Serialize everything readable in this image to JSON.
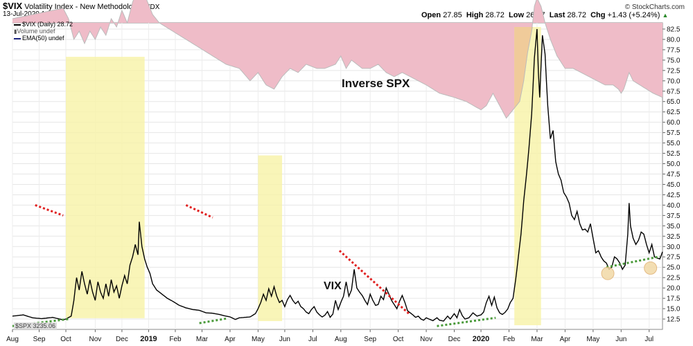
{
  "header": {
    "symbol": "$VIX",
    "name": "Volatility Index - New Methodology",
    "exchange": "INDX",
    "timestamp": "13-Jul-2020 1:37pm",
    "open_label": "Open",
    "open": "27.85",
    "high_label": "High",
    "high": "28.72",
    "low_label": "Low",
    "low": "26.87",
    "last_label": "Last",
    "last": "28.72",
    "chg_label": "Chg",
    "chg": "+1.43 (+5.24%)",
    "up_arrow": "▲",
    "brand": "© StockCharts.com"
  },
  "legend": {
    "vix": "$VIX (Daily) 28.72",
    "volume": "Volume undef",
    "ema": "EMA(50) undef",
    "spx": "$SPX 3235.06"
  },
  "annotations": {
    "inverse_spx": "Inverse SPX",
    "vix": "VIX"
  },
  "colors": {
    "inverse_fill": "#efbcc8",
    "highlight_yellow": "#f7f3a6",
    "highlight_orange": "#efc596",
    "vix_line": "#000000",
    "red_dots": "#e02020",
    "green_dots": "#4a9a3a",
    "circle_fill": "#f1d9a6"
  },
  "chart_data": {
    "type": "line",
    "title": "$VIX Volatility Index - New Methodology",
    "ylim": [
      10,
      84
    ],
    "y_ticks": [
      "12.5",
      "15.0",
      "17.5",
      "20.0",
      "22.5",
      "25.0",
      "27.5",
      "30.0",
      "32.5",
      "35.0",
      "37.5",
      "40.0",
      "42.5",
      "45.0",
      "47.5",
      "50.0",
      "52.5",
      "55.0",
      "57.5",
      "60.0",
      "62.5",
      "65.0",
      "67.5",
      "70.0",
      "72.5",
      "75.0",
      "77.5",
      "80.0",
      "82.5"
    ],
    "x_labels": [
      "Aug",
      "Sep",
      "Oct",
      "Nov",
      "Dec",
      "2019",
      "Feb",
      "Mar",
      "Apr",
      "May",
      "Jun",
      "Jul",
      "Aug",
      "Sep",
      "Oct",
      "Nov",
      "Dec",
      "2020",
      "Feb",
      "Mar",
      "Apr",
      "May",
      "Jun",
      "Jul"
    ],
    "x_label_index": [
      0,
      20,
      40,
      62,
      82,
      102,
      122,
      142,
      163,
      184,
      204,
      225,
      246,
      268,
      289,
      310,
      331,
      351,
      372,
      393,
      414,
      435,
      456,
      477
    ],
    "n_points": 488,
    "series": [
      {
        "name": "$VIX (Daily)",
        "anchors": [
          [
            0,
            13.2
          ],
          [
            8,
            13.5
          ],
          [
            15,
            12.8
          ],
          [
            22,
            12.6
          ],
          [
            30,
            12.9
          ],
          [
            38,
            12.3
          ],
          [
            40,
            12.5
          ],
          [
            44,
            13.2
          ],
          [
            46,
            17.0
          ],
          [
            48,
            22.5
          ],
          [
            50,
            19.5
          ],
          [
            52,
            24.0
          ],
          [
            54,
            21.0
          ],
          [
            56,
            18.5
          ],
          [
            58,
            22.0
          ],
          [
            60,
            19.0
          ],
          [
            62,
            17.0
          ],
          [
            64,
            21.5
          ],
          [
            66,
            19.0
          ],
          [
            68,
            17.5
          ],
          [
            70,
            21.0
          ],
          [
            72,
            18.0
          ],
          [
            74,
            22.0
          ],
          [
            76,
            19.0
          ],
          [
            78,
            20.5
          ],
          [
            80,
            17.5
          ],
          [
            82,
            20.5
          ],
          [
            84,
            23.0
          ],
          [
            86,
            21.0
          ],
          [
            88,
            25.5
          ],
          [
            90,
            27.5
          ],
          [
            92,
            30.5
          ],
          [
            94,
            28.0
          ],
          [
            95,
            36.0
          ],
          [
            97,
            30.0
          ],
          [
            99,
            27.0
          ],
          [
            101,
            25.0
          ],
          [
            103,
            23.5
          ],
          [
            105,
            21.0
          ],
          [
            108,
            19.5
          ],
          [
            112,
            18.5
          ],
          [
            116,
            17.5
          ],
          [
            120,
            16.8
          ],
          [
            125,
            15.8
          ],
          [
            130,
            15.2
          ],
          [
            135,
            14.8
          ],
          [
            140,
            14.6
          ],
          [
            145,
            14.0
          ],
          [
            150,
            13.9
          ],
          [
            155,
            13.6
          ],
          [
            160,
            13.2
          ],
          [
            163,
            13.0
          ],
          [
            167,
            12.4
          ],
          [
            170,
            12.8
          ],
          [
            174,
            12.9
          ],
          [
            178,
            13.0
          ],
          [
            182,
            13.8
          ],
          [
            184,
            15.0
          ],
          [
            186,
            16.5
          ],
          [
            188,
            18.5
          ],
          [
            190,
            17.0
          ],
          [
            192,
            19.8
          ],
          [
            194,
            18.0
          ],
          [
            196,
            20.3
          ],
          [
            198,
            18.0
          ],
          [
            200,
            16.5
          ],
          [
            202,
            17.0
          ],
          [
            204,
            15.5
          ],
          [
            206,
            17.2
          ],
          [
            208,
            18.2
          ],
          [
            210,
            17.0
          ],
          [
            212,
            16.2
          ],
          [
            214,
            16.8
          ],
          [
            216,
            15.5
          ],
          [
            218,
            15.0
          ],
          [
            220,
            14.2
          ],
          [
            222,
            13.8
          ],
          [
            224,
            14.8
          ],
          [
            226,
            15.5
          ],
          [
            228,
            14.2
          ],
          [
            230,
            13.5
          ],
          [
            232,
            13.0
          ],
          [
            234,
            13.4
          ],
          [
            236,
            14.3
          ],
          [
            238,
            12.9
          ],
          [
            240,
            13.7
          ],
          [
            242,
            17.0
          ],
          [
            244,
            14.8
          ],
          [
            246,
            16.5
          ],
          [
            248,
            18.0
          ],
          [
            250,
            21.5
          ],
          [
            252,
            18.0
          ],
          [
            254,
            19.5
          ],
          [
            256,
            24.5
          ],
          [
            258,
            20.0
          ],
          [
            260,
            19.0
          ],
          [
            262,
            18.2
          ],
          [
            264,
            17.0
          ],
          [
            266,
            16.0
          ],
          [
            268,
            18.5
          ],
          [
            270,
            17.0
          ],
          [
            272,
            15.8
          ],
          [
            274,
            16.0
          ],
          [
            276,
            18.0
          ],
          [
            278,
            17.2
          ],
          [
            280,
            20.0
          ],
          [
            282,
            18.5
          ],
          [
            284,
            17.0
          ],
          [
            286,
            16.0
          ],
          [
            288,
            15.0
          ],
          [
            290,
            16.8
          ],
          [
            292,
            18.2
          ],
          [
            294,
            16.5
          ],
          [
            296,
            14.5
          ],
          [
            298,
            14.0
          ],
          [
            300,
            13.5
          ],
          [
            302,
            12.9
          ],
          [
            304,
            13.2
          ],
          [
            306,
            12.5
          ],
          [
            308,
            12.2
          ],
          [
            310,
            12.8
          ],
          [
            312,
            12.5
          ],
          [
            315,
            12.1
          ],
          [
            318,
            12.8
          ],
          [
            320,
            12.2
          ],
          [
            323,
            12.0
          ],
          [
            326,
            13.2
          ],
          [
            328,
            12.5
          ],
          [
            331,
            13.8
          ],
          [
            333,
            12.8
          ],
          [
            335,
            14.8
          ],
          [
            337,
            13.3
          ],
          [
            339,
            12.5
          ],
          [
            342,
            12.8
          ],
          [
            345,
            14.0
          ],
          [
            348,
            13.2
          ],
          [
            351,
            13.5
          ],
          [
            353,
            14.2
          ],
          [
            355,
            16.5
          ],
          [
            357,
            18.0
          ],
          [
            359,
            15.8
          ],
          [
            361,
            17.8
          ],
          [
            363,
            15.2
          ],
          [
            365,
            14.0
          ],
          [
            367,
            13.6
          ],
          [
            369,
            14.1
          ],
          [
            371,
            14.9
          ],
          [
            373,
            16.5
          ],
          [
            375,
            17.5
          ],
          [
            377,
            22.0
          ],
          [
            379,
            27.5
          ],
          [
            381,
            33.0
          ],
          [
            383,
            41.0
          ],
          [
            385,
            47.0
          ],
          [
            387,
            54.0
          ],
          [
            389,
            62.0
          ],
          [
            391,
            75.5
          ],
          [
            393,
            82.5
          ],
          [
            394,
            72.0
          ],
          [
            395,
            66.0
          ],
          [
            397,
            81.0
          ],
          [
            399,
            76.5
          ],
          [
            401,
            64.0
          ],
          [
            403,
            56.0
          ],
          [
            405,
            58.0
          ],
          [
            407,
            50.5
          ],
          [
            409,
            47.5
          ],
          [
            411,
            46.0
          ],
          [
            413,
            43.0
          ],
          [
            415,
            42.0
          ],
          [
            417,
            40.5
          ],
          [
            419,
            37.5
          ],
          [
            421,
            36.5
          ],
          [
            423,
            38.5
          ],
          [
            425,
            35.5
          ],
          [
            427,
            34.0
          ],
          [
            429,
            34.2
          ],
          [
            431,
            33.5
          ],
          [
            433,
            35.5
          ],
          [
            435,
            32.0
          ],
          [
            437,
            28.5
          ],
          [
            439,
            29.0
          ],
          [
            441,
            27.5
          ],
          [
            443,
            26.5
          ],
          [
            445,
            26.0
          ],
          [
            447,
            24.5
          ],
          [
            449,
            25.0
          ],
          [
            451,
            27.5
          ],
          [
            453,
            27.0
          ],
          [
            455,
            26.0
          ],
          [
            457,
            24.5
          ],
          [
            459,
            25.5
          ],
          [
            461,
            33.0
          ],
          [
            462,
            40.5
          ],
          [
            463,
            35.0
          ],
          [
            465,
            32.0
          ],
          [
            467,
            30.5
          ],
          [
            469,
            31.5
          ],
          [
            471,
            33.5
          ],
          [
            473,
            33.0
          ],
          [
            475,
            30.5
          ],
          [
            477,
            28.5
          ],
          [
            479,
            30.5
          ],
          [
            481,
            27.5
          ],
          [
            483,
            27.2
          ],
          [
            485,
            27.0
          ],
          [
            487,
            28.72
          ]
        ]
      },
      {
        "name": "$SPX",
        "anchors": [
          [
            0,
            85
          ],
          [
            15,
            86
          ],
          [
            30,
            87
          ],
          [
            38,
            87.5
          ],
          [
            42,
            85
          ],
          [
            46,
            80
          ],
          [
            50,
            82
          ],
          [
            54,
            79
          ],
          [
            58,
            82
          ],
          [
            62,
            80
          ],
          [
            66,
            83
          ],
          [
            70,
            81
          ],
          [
            74,
            85
          ],
          [
            78,
            83
          ],
          [
            82,
            87
          ],
          [
            86,
            84
          ],
          [
            90,
            89
          ],
          [
            95,
            93
          ],
          [
            100,
            90
          ],
          [
            105,
            86
          ],
          [
            110,
            84
          ],
          [
            120,
            82
          ],
          [
            130,
            80
          ],
          [
            140,
            78
          ],
          [
            150,
            76
          ],
          [
            160,
            74
          ],
          [
            170,
            73
          ],
          [
            178,
            70
          ],
          [
            184,
            72
          ],
          [
            190,
            69
          ],
          [
            196,
            68
          ],
          [
            202,
            71
          ],
          [
            208,
            73
          ],
          [
            214,
            72
          ],
          [
            220,
            74
          ],
          [
            228,
            73
          ],
          [
            234,
            73
          ],
          [
            242,
            74
          ],
          [
            246,
            76
          ],
          [
            250,
            73
          ],
          [
            254,
            75
          ],
          [
            258,
            74
          ],
          [
            262,
            73
          ],
          [
            268,
            73
          ],
          [
            274,
            74
          ],
          [
            280,
            72
          ],
          [
            286,
            71
          ],
          [
            292,
            72
          ],
          [
            298,
            71
          ],
          [
            304,
            70
          ],
          [
            310,
            69
          ],
          [
            320,
            67
          ],
          [
            331,
            66
          ],
          [
            340,
            65
          ],
          [
            351,
            63
          ],
          [
            355,
            64
          ],
          [
            360,
            67
          ],
          [
            365,
            64
          ],
          [
            370,
            61
          ],
          [
            375,
            63
          ],
          [
            380,
            65
          ],
          [
            383,
            70
          ],
          [
            386,
            77
          ],
          [
            389,
            82
          ],
          [
            391,
            88
          ],
          [
            393,
            90
          ],
          [
            396,
            88
          ],
          [
            399,
            84
          ],
          [
            403,
            80
          ],
          [
            408,
            76
          ],
          [
            414,
            73
          ],
          [
            420,
            73
          ],
          [
            426,
            72
          ],
          [
            432,
            71
          ],
          [
            438,
            70
          ],
          [
            444,
            69
          ],
          [
            450,
            69
          ],
          [
            454,
            68
          ],
          [
            456,
            67
          ],
          [
            458,
            68
          ],
          [
            462,
            72
          ],
          [
            465,
            70
          ],
          [
            470,
            69
          ],
          [
            475,
            68
          ],
          [
            480,
            67
          ],
          [
            487,
            66
          ]
        ]
      }
    ]
  }
}
